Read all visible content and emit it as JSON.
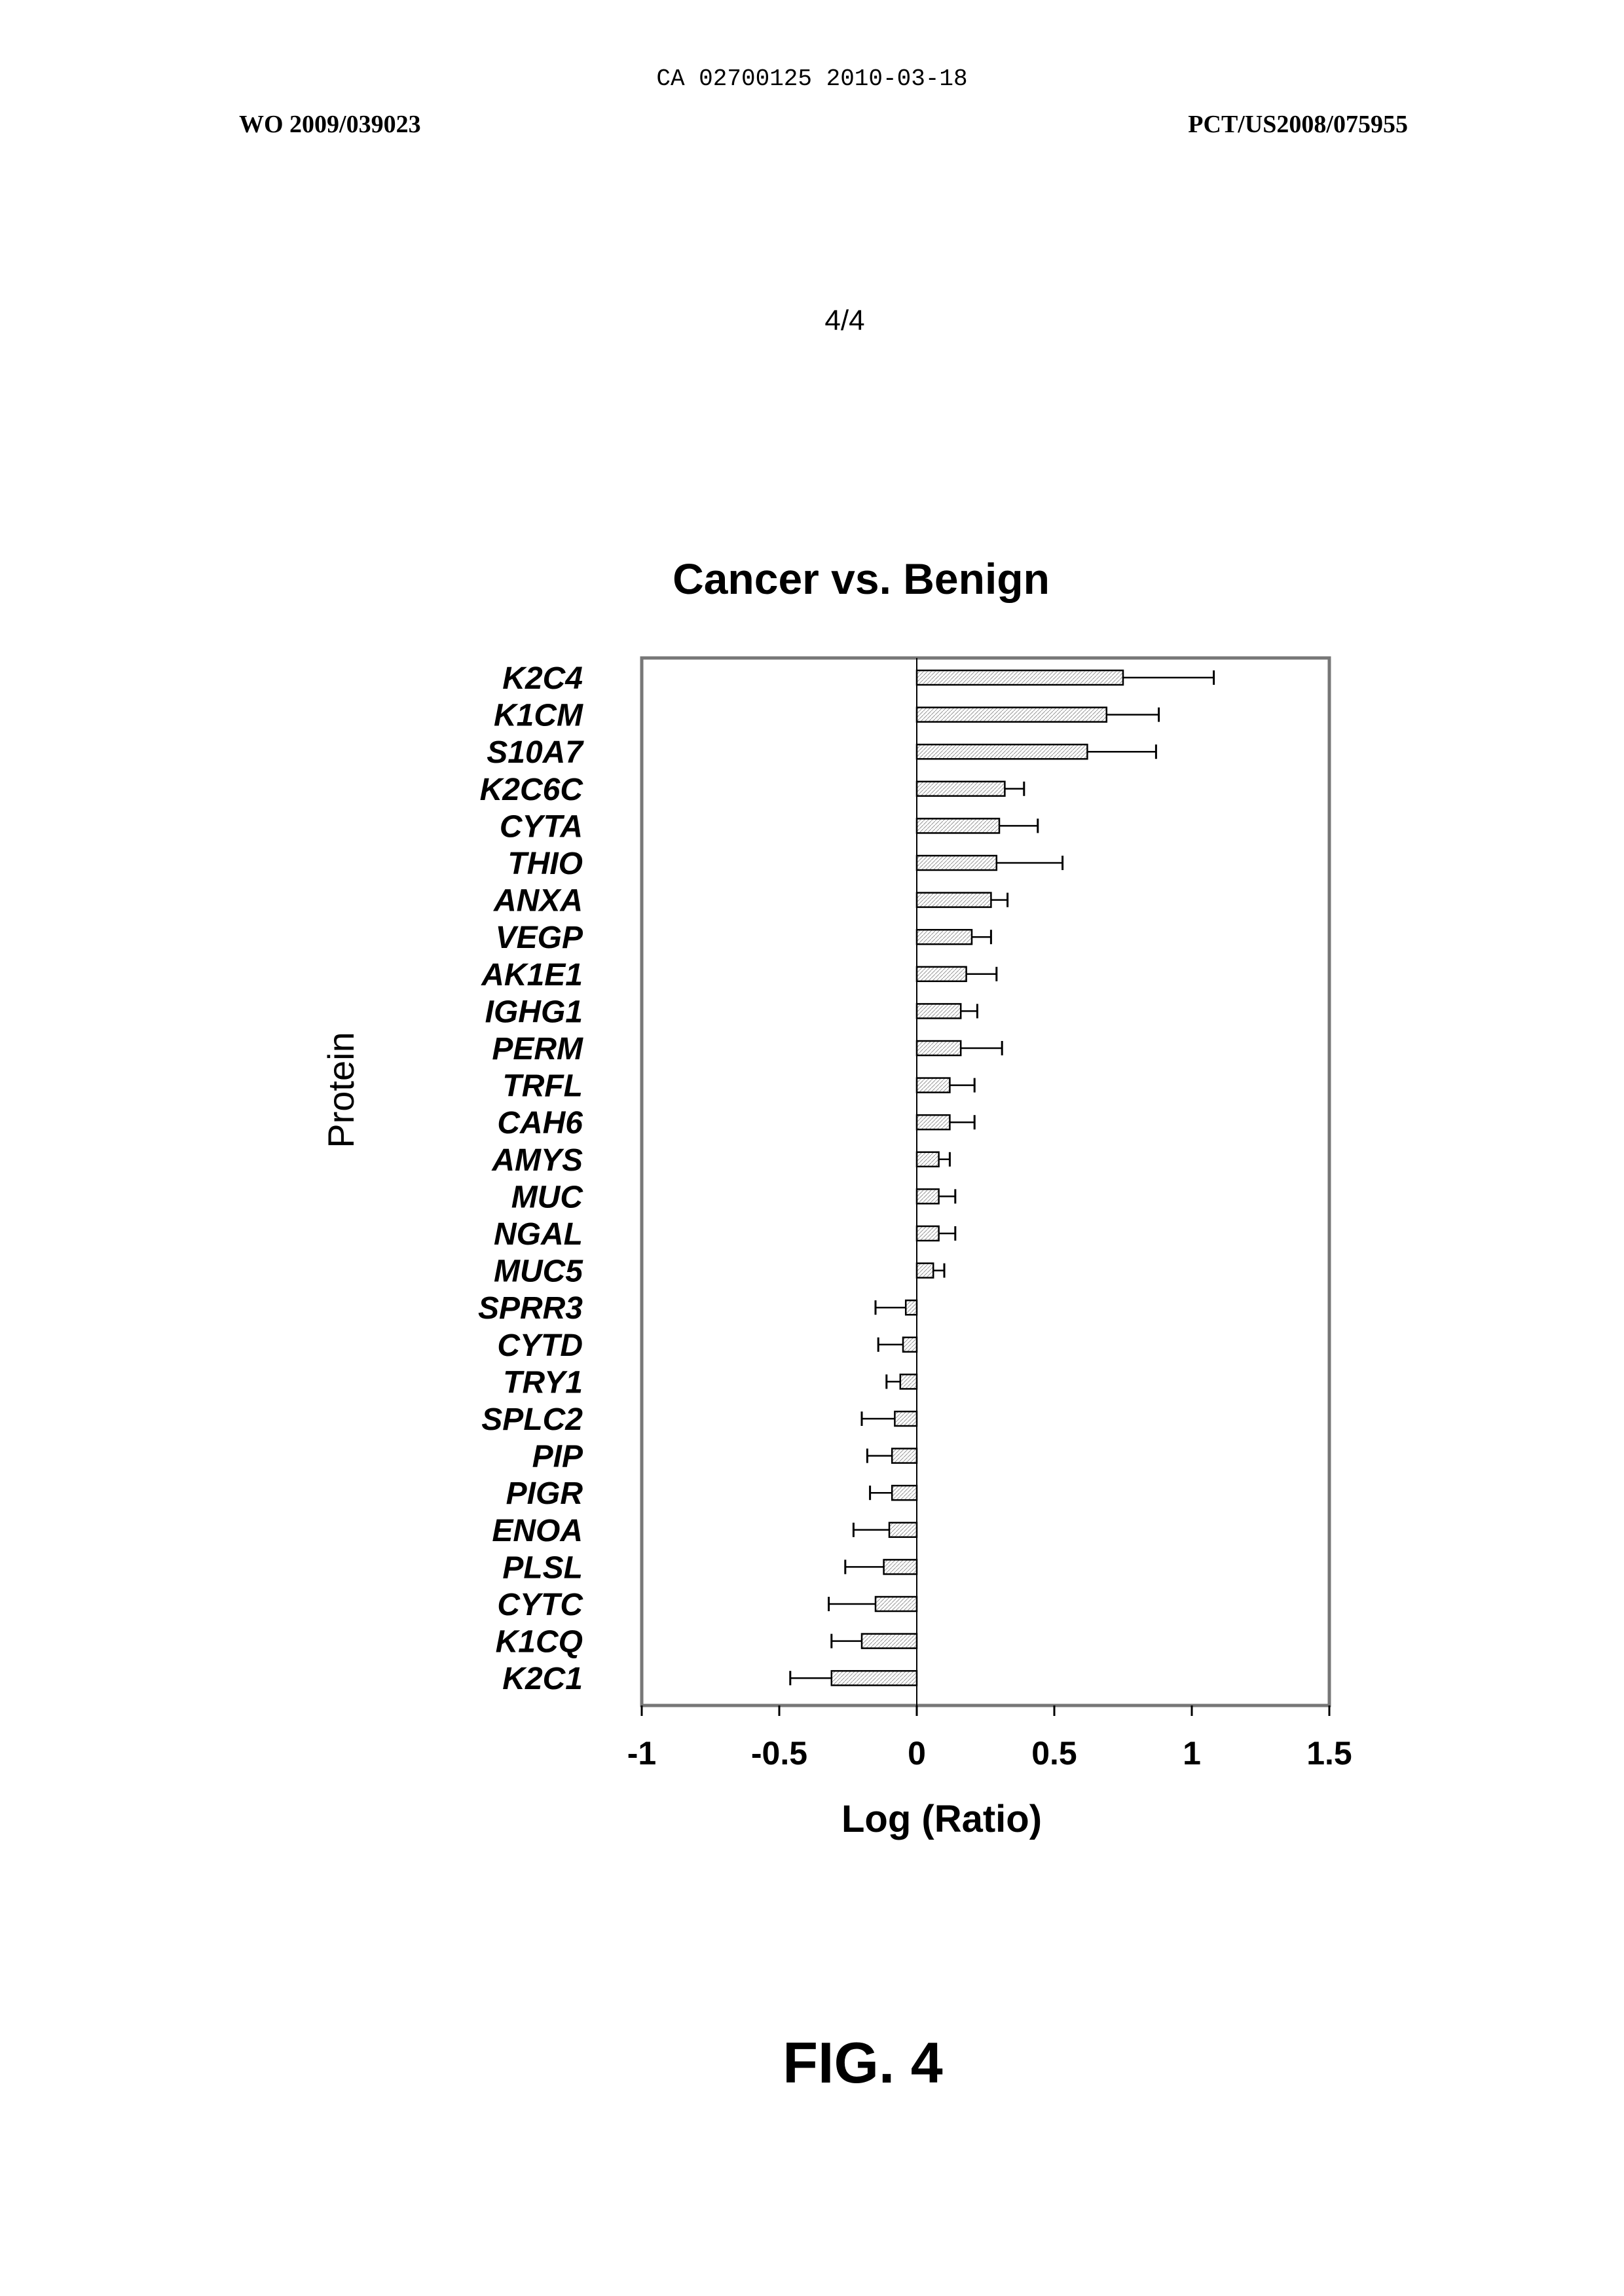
{
  "header": {
    "ca_number": "CA 02700125 2010-03-18",
    "wo_number": "WO 2009/039023",
    "pct_number": "PCT/US2008/075955"
  },
  "page_number": "4/4",
  "figure_label": "FIG. 4",
  "chart_data": {
    "type": "bar",
    "orientation": "horizontal",
    "title": "Cancer vs. Benign",
    "xlabel": "Log (Ratio)",
    "ylabel": "Protein",
    "xlim": [
      -1,
      1.5
    ],
    "xticks": [
      -1,
      -0.5,
      0,
      0.5,
      1,
      1.5
    ],
    "xtick_labels": [
      "-1",
      "-0.5",
      "0",
      "0.5",
      "1",
      "1.5"
    ],
    "grid": false,
    "colors": {
      "bar_fill": "#ffffff",
      "bar_stroke": "#000000",
      "frame": "#777777"
    },
    "categories": [
      "K2C4",
      "K1CM",
      "S10A7",
      "K2C6C",
      "CYTA",
      "THIO",
      "ANXA",
      "VEGP",
      "AK1E1",
      "IGHG1",
      "PERM",
      "TRFL",
      "CAH6",
      "AMYS",
      "MUC",
      "NGAL",
      "MUC5",
      "SPRR3",
      "CYTD",
      "TRY1",
      "SPLC2",
      "PIP",
      "PIGR",
      "ENOA",
      "PLSL",
      "CYTC",
      "K1CQ",
      "K2C1"
    ],
    "values": [
      0.75,
      0.69,
      0.62,
      0.32,
      0.3,
      0.29,
      0.27,
      0.2,
      0.18,
      0.16,
      0.16,
      0.12,
      0.12,
      0.08,
      0.08,
      0.08,
      0.06,
      -0.04,
      -0.05,
      -0.06,
      -0.08,
      -0.09,
      -0.09,
      -0.1,
      -0.12,
      -0.15,
      -0.2,
      -0.31
    ],
    "error_upper": [
      0.33,
      0.19,
      0.25,
      0.07,
      0.14,
      0.24,
      0.06,
      0.07,
      0.11,
      0.06,
      0.15,
      0.09,
      0.09,
      0.04,
      0.06,
      0.06,
      0.04,
      -0.11,
      -0.09,
      -0.05,
      -0.12,
      -0.09,
      -0.08,
      -0.13,
      -0.14,
      -0.17,
      -0.11,
      -0.15
    ]
  }
}
